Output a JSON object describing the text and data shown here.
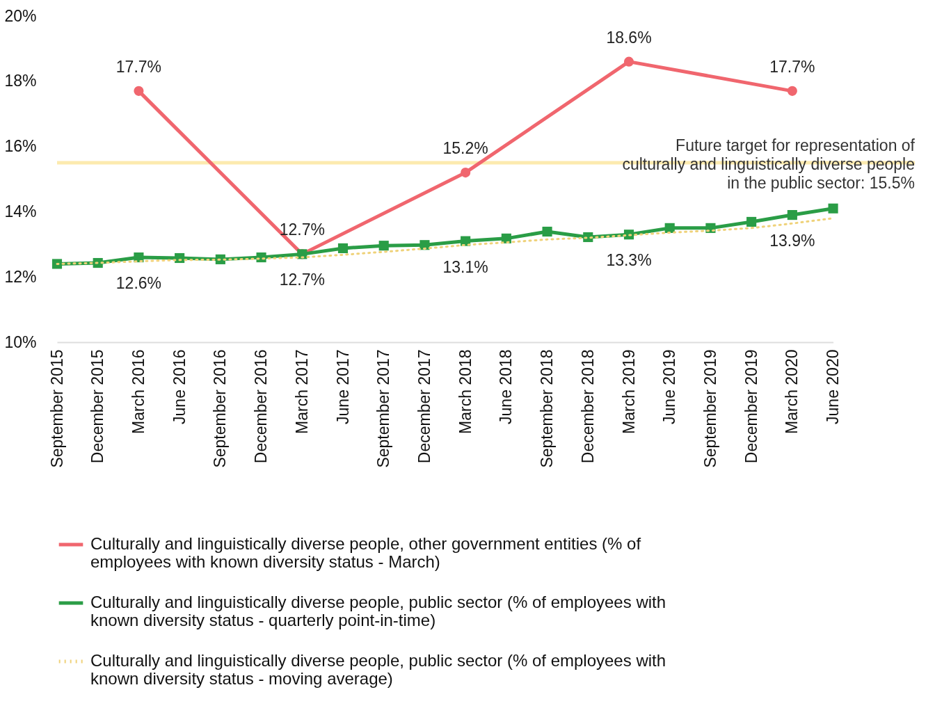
{
  "chart_data": {
    "type": "line",
    "categories": [
      "September 2015",
      "December 2015",
      "March 2016",
      "June 2016",
      "September 2016",
      "December 2016",
      "March 2017",
      "June 2017",
      "September 2017",
      "December 2017",
      "March 2018",
      "June 2018",
      "September 2018",
      "December 2018",
      "March 2019",
      "June 2019",
      "September 2019",
      "December 2019",
      "March 2020",
      "June 2020"
    ],
    "series": [
      {
        "name": "Culturally and linguistically diverse people, other government entities (% of employees with known diversity status - March)",
        "color": "#f0666e",
        "marker": "circle",
        "line_style": "solid",
        "x": [
          "March 2016",
          "March 2017",
          "March 2018",
          "March 2019",
          "March 2020"
        ],
        "values": [
          17.7,
          12.7,
          15.2,
          18.6,
          17.7
        ],
        "value_labels": [
          "17.7%",
          "12.7%",
          "15.2%",
          "18.6%",
          "17.7%"
        ]
      },
      {
        "name": "Culturally and linguistically diverse people, public sector (% of employees with known diversity status - quarterly point-in-time)",
        "color": "#2a9d46",
        "marker": "square",
        "line_style": "solid",
        "values": [
          12.4,
          12.43,
          12.6,
          12.58,
          12.54,
          12.6,
          12.7,
          12.88,
          12.96,
          12.98,
          13.1,
          13.18,
          13.39,
          13.22,
          13.3,
          13.5,
          13.5,
          13.69,
          13.9,
          14.1
        ],
        "value_labels": [
          null,
          null,
          "12.6%",
          null,
          null,
          null,
          "12.7%",
          null,
          null,
          null,
          "13.1%",
          null,
          null,
          null,
          "13.3%",
          null,
          null,
          null,
          "13.9%",
          null
        ]
      },
      {
        "name": "Culturally and linguistically diverse people, public sector (% of employees with known diversity status - moving average)",
        "color": "#efd27a",
        "marker": "none",
        "line_style": "dotted",
        "values": [
          12.4,
          12.43,
          12.48,
          12.52,
          12.53,
          12.56,
          12.6,
          12.68,
          12.77,
          12.87,
          12.98,
          13.06,
          13.15,
          13.2,
          13.28,
          13.36,
          13.42,
          13.5,
          13.64,
          13.8
        ]
      }
    ],
    "ylim": [
      10,
      20
    ],
    "yticks": [
      {
        "value": 10,
        "label": "10%"
      },
      {
        "value": 12,
        "label": "12%"
      },
      {
        "value": 14,
        "label": "14%"
      },
      {
        "value": 16,
        "label": "16%"
      },
      {
        "value": 18,
        "label": "18%"
      },
      {
        "value": 20,
        "label": "20%"
      }
    ],
    "grid": false,
    "legend": "bottom",
    "ref_lines": [
      {
        "axis": "y",
        "value": 15.5,
        "label": "Future target for representation of culturally and linguistically diverse people in the public sector: 15.5%",
        "color": "#f7c21b"
      }
    ]
  }
}
